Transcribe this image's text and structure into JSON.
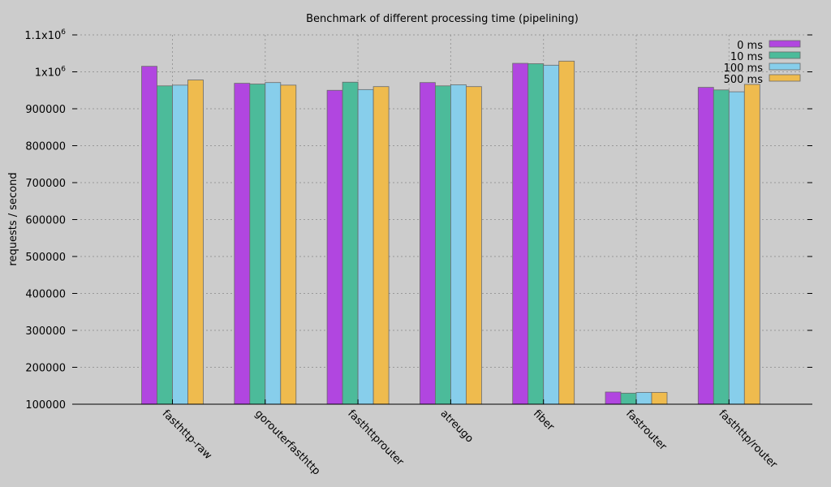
{
  "chart_data": {
    "type": "bar",
    "title": "Benchmark of different processing time (pipelining)",
    "xlabel": "",
    "ylabel": "requests / second",
    "ylim": [
      100000,
      1100000
    ],
    "yticks": [
      {
        "value": 100000,
        "label": "100000"
      },
      {
        "value": 200000,
        "label": "200000"
      },
      {
        "value": 300000,
        "label": "300000"
      },
      {
        "value": 400000,
        "label": "400000"
      },
      {
        "value": 500000,
        "label": "500000"
      },
      {
        "value": 600000,
        "label": "600000"
      },
      {
        "value": 700000,
        "label": "700000"
      },
      {
        "value": 800000,
        "label": "800000"
      },
      {
        "value": 900000,
        "label": "900000"
      },
      {
        "value": 1000000,
        "label": "1x10",
        "sup": "6"
      },
      {
        "value": 1100000,
        "label": "1.1x10",
        "sup": "6"
      }
    ],
    "categories": [
      "fasthttp-raw",
      "gorouterfasthttp",
      "fasthttprouter",
      "atreugo",
      "fiber",
      "fastrouter",
      "fasthttp/router"
    ],
    "series": [
      {
        "name": "0 ms",
        "color": "#b146e0",
        "values": [
          1015000,
          969000,
          950000,
          971000,
          1023000,
          133000,
          958000
        ]
      },
      {
        "name": "10 ms",
        "color": "#4cbb9a",
        "values": [
          962000,
          967000,
          972000,
          962000,
          1022000,
          130000,
          951000
        ]
      },
      {
        "name": "100 ms",
        "color": "#87ceeb",
        "values": [
          964000,
          971000,
          952000,
          965000,
          1018000,
          132000,
          946000
        ]
      },
      {
        "name": "500 ms",
        "color": "#efbb4e",
        "values": [
          978000,
          964000,
          960000,
          960000,
          1029000,
          132000,
          966000
        ]
      }
    ],
    "grid": true,
    "legend_position": "top-right"
  }
}
